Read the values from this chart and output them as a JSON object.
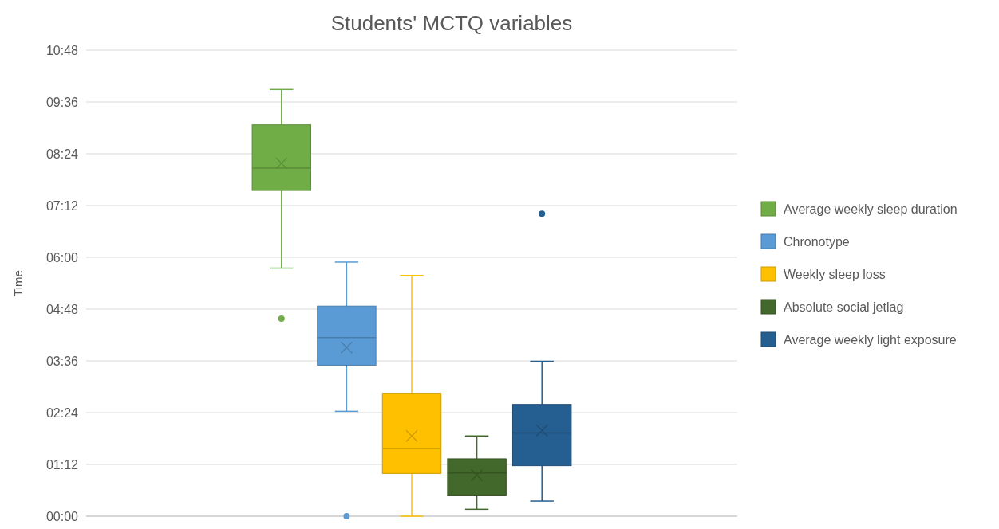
{
  "chart_data": {
    "type": "box",
    "title": "Students' MCTQ variables",
    "ylabel": "Time",
    "categories": [
      null
    ],
    "ylim": [
      0,
      10.8
    ],
    "yticks": [
      {
        "value": 0,
        "label": "00:00"
      },
      {
        "value": 1.2,
        "label": "01:12"
      },
      {
        "value": 2.4,
        "label": "02:24"
      },
      {
        "value": 3.6,
        "label": "03:36"
      },
      {
        "value": 4.8,
        "label": "04:48"
      },
      {
        "value": 6,
        "label": "06:00"
      },
      {
        "value": 7.2,
        "label": "07:12"
      },
      {
        "value": 8.4,
        "label": "08:24"
      },
      {
        "value": 9.6,
        "label": "09:36"
      },
      {
        "value": 10.8,
        "label": "10:48"
      }
    ],
    "grid": "y",
    "legend": "right",
    "tick_labels": "y",
    "series": [
      {
        "name": "Average weekly sleep duration",
        "color": "#70ad47",
        "boxes": [
          {
            "low": 5.75,
            "q1": 7.55,
            "median": 8.07,
            "q3": 9.07,
            "high": 9.89,
            "mean": 8.18,
            "outliers": [
              4.58
            ]
          }
        ]
      },
      {
        "name": "Chronotype",
        "color": "#5b9bd5",
        "boxes": [
          {
            "low": 2.43,
            "q1": 3.5,
            "median": 4.14,
            "q3": 4.87,
            "high": 5.89,
            "mean": 3.91,
            "outliers": [
              0
            ]
          }
        ]
      },
      {
        "name": "Weekly sleep loss",
        "color": "#ffc000",
        "boxes": [
          {
            "low": 0,
            "q1": 0.99,
            "median": 1.57,
            "q3": 2.85,
            "high": 5.58,
            "mean": 1.86
          }
        ]
      },
      {
        "name": "Absolute social jetlag",
        "color": "#43682b",
        "boxes": [
          {
            "low": 0.16,
            "q1": 0.49,
            "median": 1.0,
            "q3": 1.33,
            "high": 1.86,
            "mean": 0.95
          }
        ]
      },
      {
        "name": "Average weekly light exposure",
        "color": "#255e91",
        "boxes": [
          {
            "low": 0.35,
            "q1": 1.17,
            "median": 1.93,
            "q3": 2.59,
            "high": 3.59,
            "mean": 1.99,
            "outliers": [
              7.01
            ]
          }
        ]
      }
    ]
  }
}
